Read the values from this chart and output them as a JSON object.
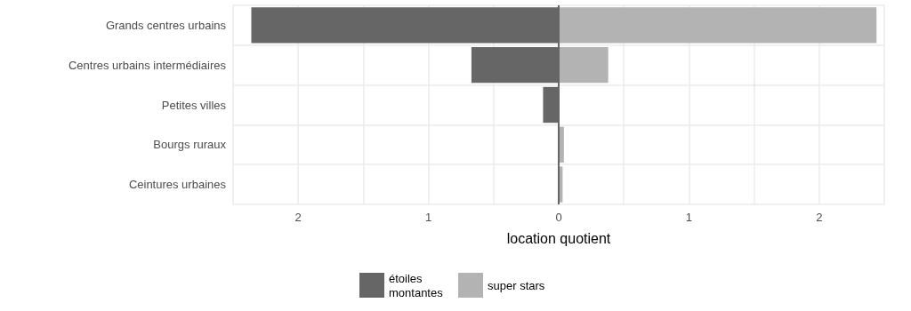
{
  "chart_data": {
    "type": "bar",
    "orientation": "horizontal",
    "xlabel": "location quotient",
    "categories": [
      "Grands centres urbains",
      "Centres urbains intermédiaires",
      "Petites villes",
      "Bourgs ruraux",
      "Ceintures urbaines"
    ],
    "series": [
      {
        "name": "étoiles montantes",
        "color": "#666666",
        "values": [
          -2.36,
          -0.67,
          -0.12,
          null,
          null
        ]
      },
      {
        "name": "super stars",
        "color": "#b3b3b3",
        "values": [
          2.44,
          0.38,
          null,
          0.04,
          0.03
        ]
      }
    ],
    "xlim": [
      -2.5,
      2.5
    ],
    "xticks": [
      {
        "value": -2.5,
        "label": null
      },
      {
        "value": -2,
        "label": "2"
      },
      {
        "value": -1.5,
        "label": null
      },
      {
        "value": -1,
        "label": "1"
      },
      {
        "value": -0.5,
        "label": null
      },
      0,
      {
        "value": 0.5,
        "label": null
      },
      1,
      {
        "value": 1.5,
        "label": null
      },
      2,
      {
        "value": 2.5,
        "label": null
      }
    ],
    "ref_lines": [
      {
        "axis": "x",
        "value": 0,
        "color": "#666666"
      }
    ],
    "grid": true,
    "legend": "bottom"
  }
}
